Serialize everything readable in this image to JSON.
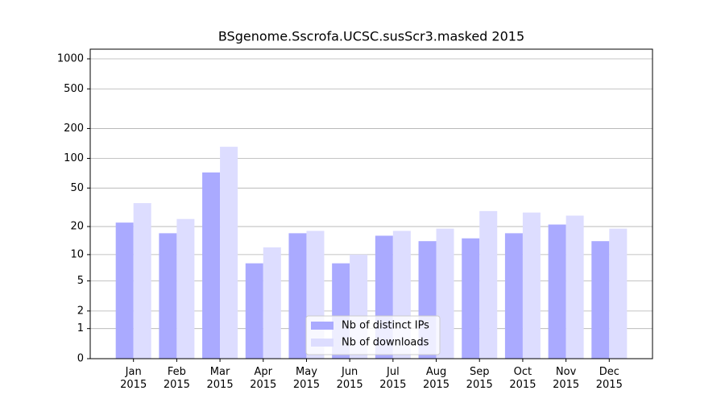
{
  "chart_data": {
    "type": "bar",
    "title": "BSgenome.Sscrofa.UCSC.susScr3.masked 2015",
    "categories": [
      "Jan\n2015",
      "Feb\n2015",
      "Mar\n2015",
      "Apr\n2015",
      "May\n2015",
      "Jun\n2015",
      "Jul\n2015",
      "Aug\n2015",
      "Sep\n2015",
      "Oct\n2015",
      "Nov\n2015",
      "Dec\n2015"
    ],
    "series": [
      {
        "name": "Nb of distinct IPs",
        "color": "#aaaaff",
        "values": [
          22,
          17,
          72,
          8,
          17,
          8,
          16,
          14,
          15,
          17,
          21,
          14
        ]
      },
      {
        "name": "Nb of downloads",
        "color": "#ddddff",
        "values": [
          35,
          24,
          131,
          12,
          18,
          10,
          18,
          19,
          29,
          28,
          26,
          19
        ]
      }
    ],
    "yscale": "log1p",
    "ylim": [
      0,
      1250
    ],
    "yticks": [
      0,
      1,
      2,
      5,
      10,
      20,
      50,
      100,
      200,
      500,
      1000
    ],
    "grid": true,
    "legend": "lower center"
  }
}
